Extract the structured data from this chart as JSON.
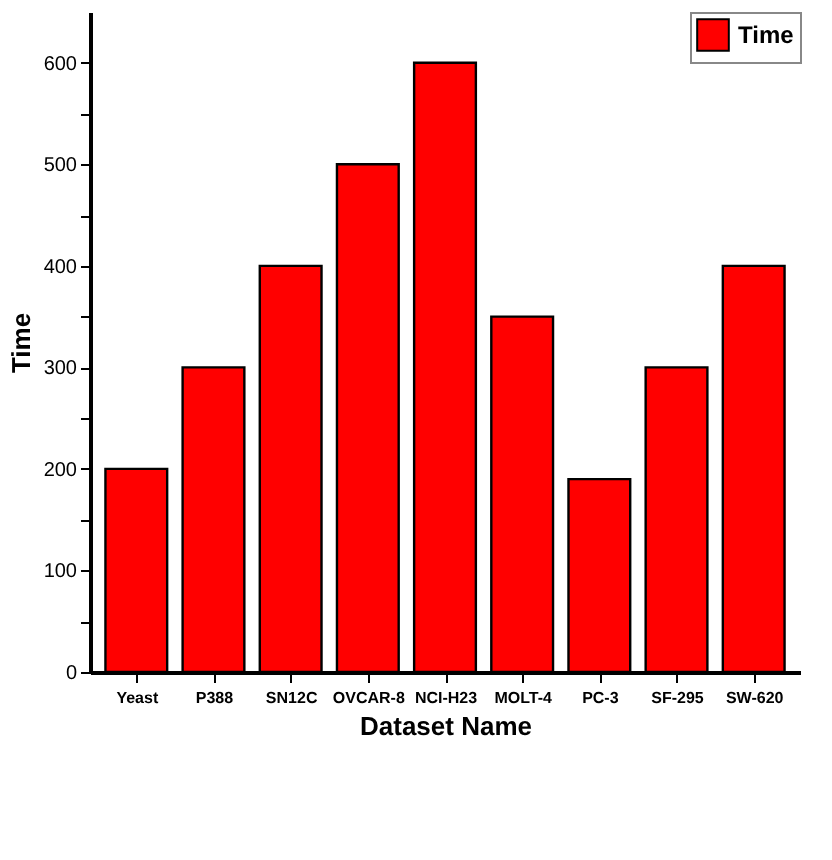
{
  "chart_data": {
    "type": "bar",
    "xlabel": "Dataset Name",
    "ylabel": "Time",
    "categories": [
      "Yeast",
      "P388",
      "SN12C",
      "OVCAR-8",
      "NCI-H23",
      "MOLT-4",
      "PC-3",
      "SF-295",
      "SW-620"
    ],
    "series": [
      {
        "name": "Time",
        "color": "#ff0000",
        "values": [
          200,
          300,
          400,
          500,
          600,
          350,
          190,
          300,
          400
        ]
      }
    ],
    "ylim": [
      0,
      650
    ],
    "yticks": [
      0,
      {
        "value": 50,
        "label": null
      },
      100,
      {
        "value": 150,
        "label": null
      },
      200,
      {
        "value": 250,
        "label": null
      },
      300,
      {
        "value": 350,
        "label": null
      },
      400,
      {
        "value": 450,
        "label": null
      },
      500,
      {
        "value": 550,
        "label": null
      },
      600
    ],
    "grid": false,
    "legend": "top right"
  }
}
